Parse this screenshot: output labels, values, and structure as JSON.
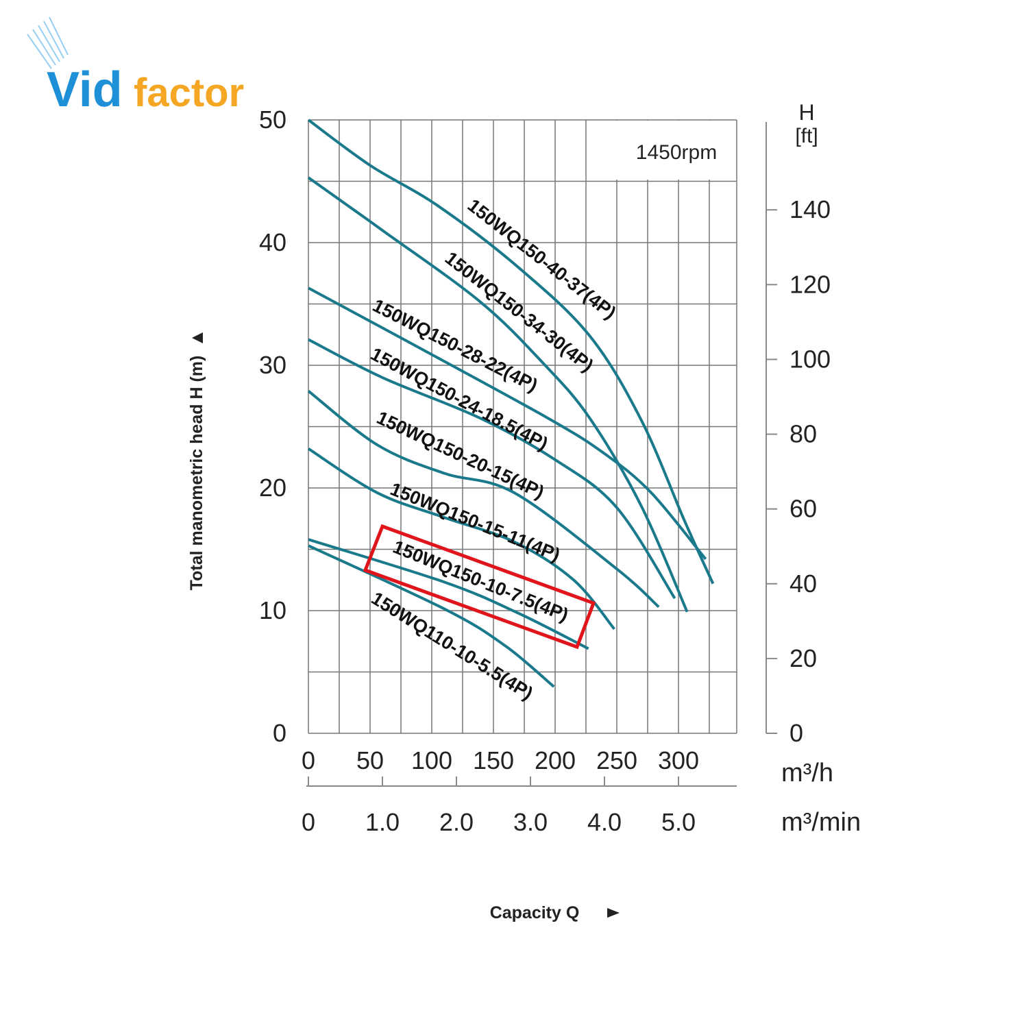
{
  "logo": {
    "text_a": "Vid",
    "text_b": "factor",
    "color_blue": "#1e90d8",
    "color_orange": "#f5a623"
  },
  "chart_data": {
    "type": "line",
    "title": "",
    "annotation": "1450rpm",
    "xlabel": "Capacity Q",
    "ylabel": "Total manometric head H (m)",
    "x_unit": "m³/h",
    "x2_unit": "m³/min",
    "y2_label_top": "H",
    "y2_label_unit": "[ft]",
    "xlim": [
      0,
      347
    ],
    "ylim": [
      0,
      50
    ],
    "y2lim": [
      0,
      164
    ],
    "x_ticks": [
      0,
      50,
      100,
      150,
      200,
      250,
      300
    ],
    "x_tick_labels": [
      "0",
      "50",
      "100",
      "150",
      "200",
      "250",
      "300"
    ],
    "x2_ticks": [
      0,
      1,
      2,
      3,
      4,
      5
    ],
    "x2_tick_labels": [
      "0",
      "1.0",
      "2.0",
      "3.0",
      "4.0",
      "5.0"
    ],
    "y_ticks": [
      0,
      10,
      20,
      30,
      40,
      50
    ],
    "y_tick_labels": [
      "0",
      "10",
      "20",
      "30",
      "40",
      "50"
    ],
    "y2_ticks": [
      0,
      20,
      40,
      60,
      80,
      100,
      120,
      140
    ],
    "y2_tick_labels": [
      "0",
      "20",
      "40",
      "60",
      "80",
      "100",
      "120",
      "140"
    ],
    "grid": true,
    "line_color": "#1a7a8c",
    "highlight_color": "#e0141b",
    "highlighted_series": "150WQ150-10-7.5(4P)",
    "series": [
      {
        "name": "150WQ150-40-37(4P)",
        "x": [
          0,
          50,
          105,
          170,
          228,
          270,
          305,
          328
        ],
        "y": [
          50,
          46.3,
          43,
          38,
          32.4,
          25.5,
          17.3,
          12.2
        ]
      },
      {
        "name": "150WQ150-34-30(4P)",
        "x": [
          0,
          60,
          139,
          190,
          228,
          270,
          307
        ],
        "y": [
          45.3,
          41,
          35.2,
          30.2,
          25.7,
          18.5,
          9.9
        ]
      },
      {
        "name": "150WQ150-28-22(4P)",
        "x": [
          0,
          83,
          194,
          240,
          278,
          322
        ],
        "y": [
          36.3,
          31.8,
          25.7,
          22.8,
          19.6,
          14.2
        ]
      },
      {
        "name": "150WQ150-24-18.5(4P)",
        "x": [
          0,
          60,
          139,
          200,
          250,
          297
        ],
        "y": [
          32.1,
          29,
          25.7,
          22.3,
          18.4,
          11
        ]
      },
      {
        "name": "150WQ150-20-15(4P)",
        "x": [
          0,
          56,
          110,
          167,
          250,
          284
        ],
        "y": [
          27.9,
          23.5,
          21.2,
          19.6,
          13.4,
          10.3
        ]
      },
      {
        "name": "150WQ150-15-11(4P)",
        "x": [
          0,
          56,
          110,
          167,
          215,
          248
        ],
        "y": [
          23.2,
          19.6,
          17.6,
          15.6,
          12.5,
          8.5
        ]
      },
      {
        "name": "150WQ150-10-7.5(4P)",
        "x": [
          0,
          111,
          170,
          227
        ],
        "y": [
          15.8,
          12.3,
          9.8,
          6.9
        ]
      },
      {
        "name": "150WQ110-10-5.5(4P)",
        "x": [
          0,
          111,
          160,
          199
        ],
        "y": [
          15.3,
          10.1,
          7.1,
          3.8
        ]
      }
    ]
  }
}
